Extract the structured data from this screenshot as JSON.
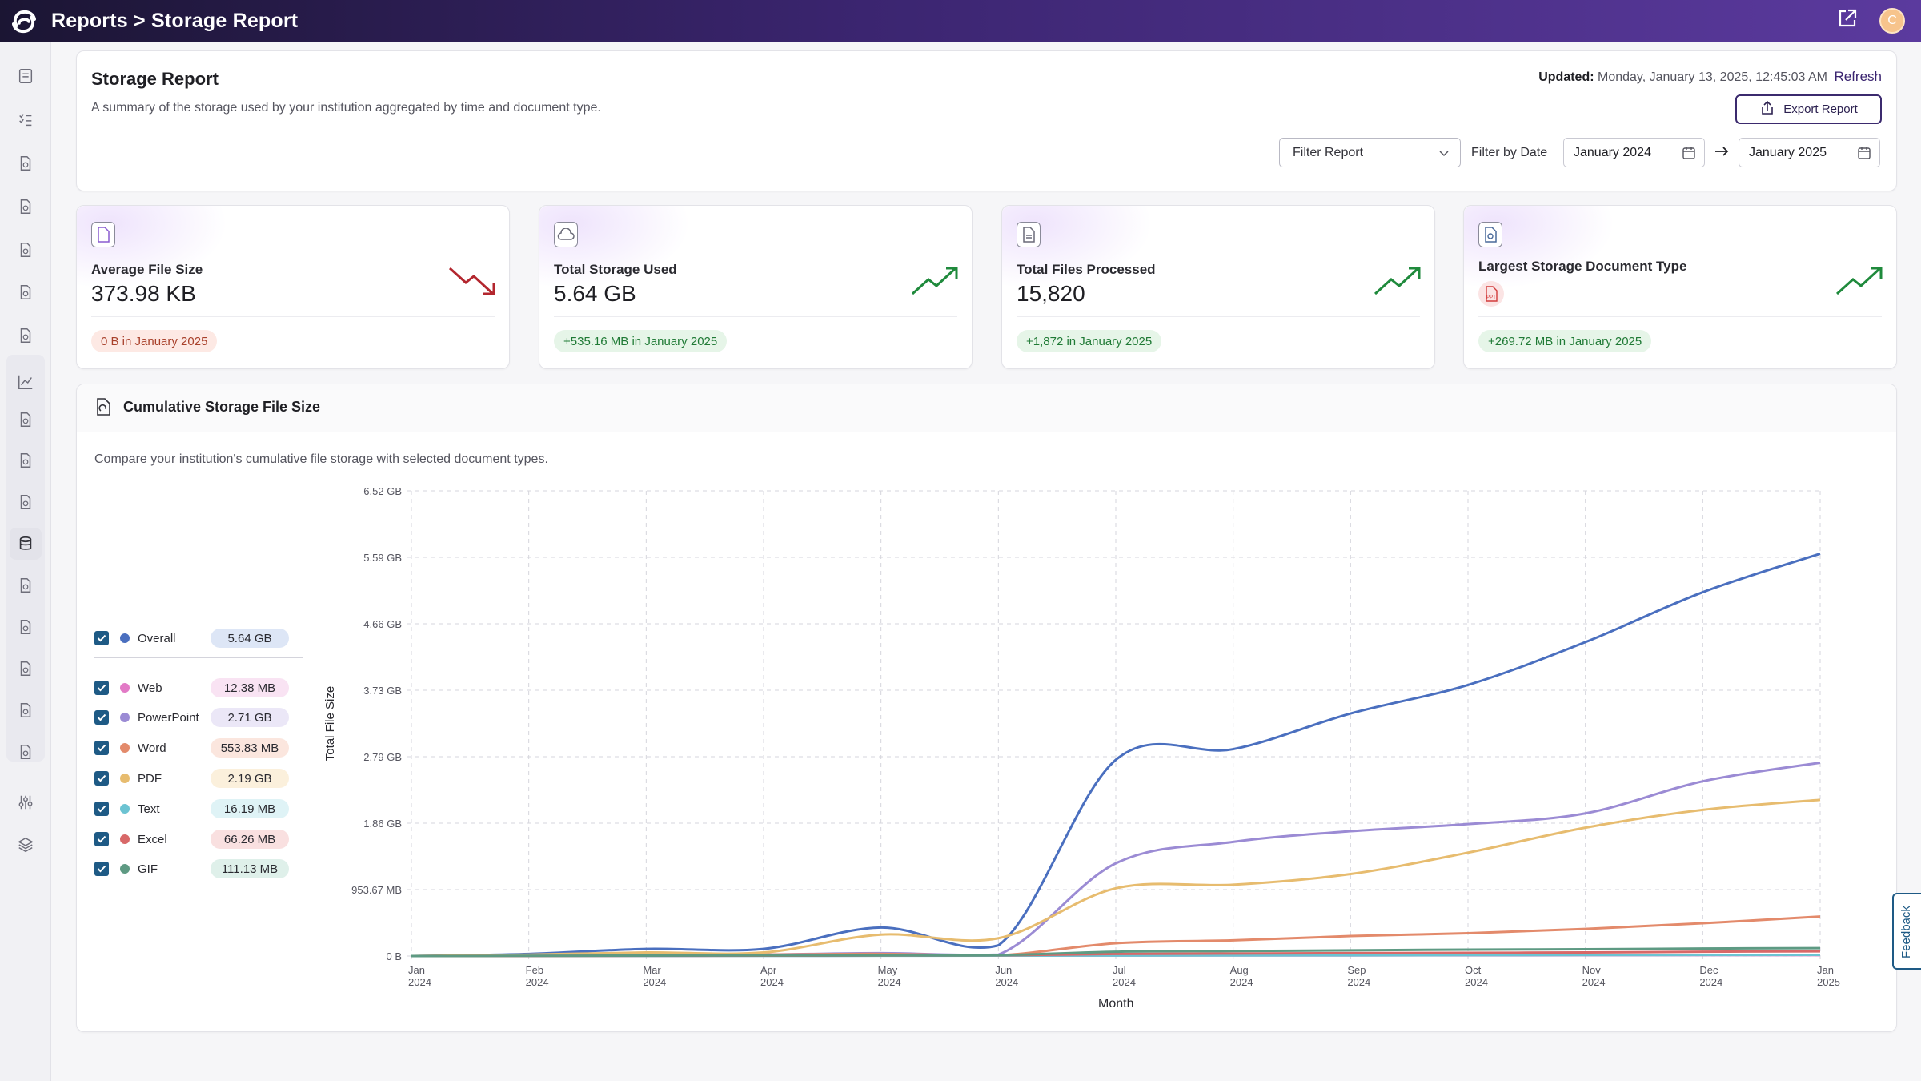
{
  "header": {
    "breadcrumb": "Reports > Storage Report",
    "avatar_initial": "C"
  },
  "sidebar": {
    "icons": [
      "report-icon",
      "checklist-icon",
      "document-search-icon",
      "sparkle-icon",
      "megaphone-icon",
      "user-search-icon",
      "hand-icon",
      "line-chart-icon",
      "graduation-cap-icon",
      "file-check-icon",
      "file-sync-icon",
      "database-icon",
      "browser-window-icon",
      "file-audit-icon",
      "hand-money-icon",
      "sound-icon",
      "book-icon",
      "sliders-icon",
      "layers-icon"
    ],
    "active": "database-icon"
  },
  "report": {
    "title": "Storage Report",
    "subtitle": "A summary of the storage used by your institution aggregated by time and document type.",
    "updated_label": "Updated:",
    "updated_value": "Monday, January 13, 2025, 12:45:03 AM",
    "refresh_label": "Refresh",
    "export_label": "Export Report",
    "filter_placeholder": "Filter Report",
    "filter_by_date_label": "Filter by Date",
    "date_from": "January 2024",
    "date_to": "January 2025"
  },
  "cards": [
    {
      "label": "Average File Size",
      "value": "373.98 KB",
      "pill": "0 B in January 2025",
      "trend": "down"
    },
    {
      "label": "Total Storage Used",
      "value": "5.64 GB",
      "pill": "+535.16 MB in January 2025",
      "trend": "up"
    },
    {
      "label": "Total Files Processed",
      "value": "15,820",
      "pill": "+1,872 in January 2025",
      "trend": "up"
    },
    {
      "label": "Largest Storage Document Type",
      "value": "",
      "badge": "PPT",
      "pill": "+269.72 MB in January 2025",
      "trend": "up"
    }
  ],
  "chart_panel": {
    "title": "Cumulative Storage File Size",
    "description": "Compare your institution's cumulative file storage with selected document types."
  },
  "legend": [
    {
      "name": "Overall",
      "value": "5.64 GB",
      "color": "#4a6fbf",
      "pill_bg": "#dde6f6",
      "checked": true
    },
    {
      "name": "Web",
      "value": "12.38 MB",
      "color": "#e27ac6",
      "pill_bg": "#f9e3f3",
      "checked": true
    },
    {
      "name": "PowerPoint",
      "value": "2.71 GB",
      "color": "#9b8bd4",
      "pill_bg": "#ebe7f7",
      "checked": true
    },
    {
      "name": "Word",
      "value": "553.83 MB",
      "color": "#e38a6b",
      "pill_bg": "#fbe6de",
      "checked": true
    },
    {
      "name": "PDF",
      "value": "2.19 GB",
      "color": "#e7bc6f",
      "pill_bg": "#fbf0dc",
      "checked": true
    },
    {
      "name": "Text",
      "value": "16.19 MB",
      "color": "#6cc3d2",
      "pill_bg": "#dff3f6",
      "checked": true
    },
    {
      "name": "Excel",
      "value": "66.26 MB",
      "color": "#d86868",
      "pill_bg": "#f9e0e0",
      "checked": true
    },
    {
      "name": "GIF",
      "value": "111.13 MB",
      "color": "#5e9a83",
      "pill_bg": "#dff0ea",
      "checked": true
    }
  ],
  "chart_data": {
    "type": "line",
    "xlabel": "Month",
    "ylabel": "Total File Size",
    "x_ticks": [
      [
        "Jan",
        "2024"
      ],
      [
        "Feb",
        "2024"
      ],
      [
        "Mar",
        "2024"
      ],
      [
        "Apr",
        "2024"
      ],
      [
        "May",
        "2024"
      ],
      [
        "Jun",
        "2024"
      ],
      [
        "Jul",
        "2024"
      ],
      [
        "Aug",
        "2024"
      ],
      [
        "Sep",
        "2024"
      ],
      [
        "Oct",
        "2024"
      ],
      [
        "Nov",
        "2024"
      ],
      [
        "Dec",
        "2024"
      ],
      [
        "Jan",
        "2025"
      ]
    ],
    "y_ticks": [
      "0 B",
      "953.67 MB",
      "1.86 GB",
      "2.79 GB",
      "3.73 GB",
      "4.66 GB",
      "5.59 GB",
      "6.52 GB"
    ],
    "y_unit": "GB",
    "ylim": [
      0,
      6.52
    ],
    "grid": true,
    "series": [
      {
        "name": "Overall",
        "color": "#4a6fbf",
        "values": [
          0.0,
          0.03,
          0.1,
          0.1,
          0.4,
          0.15,
          2.75,
          2.9,
          3.4,
          3.8,
          4.4,
          5.1,
          5.64
        ]
      },
      {
        "name": "Web",
        "color": "#e27ac6",
        "values": [
          0.0,
          0.002,
          0.003,
          0.004,
          0.005,
          0.006,
          0.007,
          0.008,
          0.009,
          0.01,
          0.011,
          0.012,
          0.0124
        ]
      },
      {
        "name": "PowerPoint",
        "color": "#9b8bd4",
        "values": [
          0.0,
          0.0,
          0.01,
          0.02,
          0.04,
          0.02,
          1.3,
          1.6,
          1.75,
          1.85,
          2.0,
          2.45,
          2.71
        ]
      },
      {
        "name": "Word",
        "color": "#e38a6b",
        "values": [
          0.0,
          0.005,
          0.01,
          0.02,
          0.03,
          0.01,
          0.18,
          0.22,
          0.28,
          0.32,
          0.38,
          0.46,
          0.554
        ]
      },
      {
        "name": "PDF",
        "color": "#e7bc6f",
        "values": [
          0.0,
          0.02,
          0.05,
          0.05,
          0.3,
          0.25,
          0.95,
          1.0,
          1.15,
          1.45,
          1.8,
          2.05,
          2.19
        ]
      },
      {
        "name": "Text",
        "color": "#6cc3d2",
        "values": [
          0.0,
          0.001,
          0.002,
          0.003,
          0.004,
          0.005,
          0.007,
          0.008,
          0.01,
          0.012,
          0.014,
          0.015,
          0.0162
        ]
      },
      {
        "name": "Excel",
        "color": "#d86868",
        "values": [
          0.0,
          0.002,
          0.004,
          0.005,
          0.008,
          0.01,
          0.03,
          0.035,
          0.04,
          0.045,
          0.05,
          0.06,
          0.066
        ]
      },
      {
        "name": "GIF",
        "color": "#5e9a83",
        "values": [
          0.0,
          0.003,
          0.006,
          0.008,
          0.01,
          0.012,
          0.06,
          0.07,
          0.08,
          0.09,
          0.095,
          0.105,
          0.111
        ]
      }
    ]
  }
}
